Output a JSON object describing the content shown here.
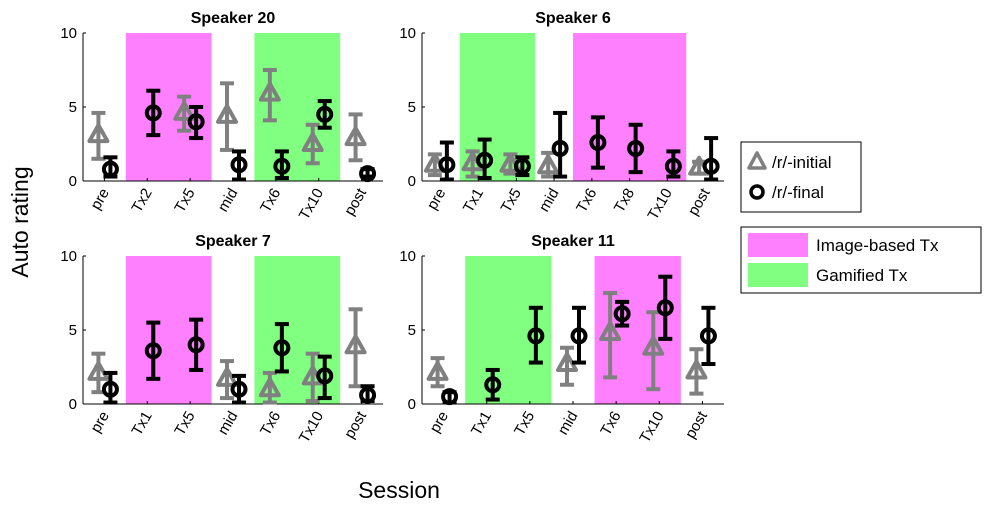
{
  "chart_data": {
    "type": "scatter",
    "xlabel": "Session",
    "ylabel": "Auto rating",
    "ylim": [
      0,
      10
    ],
    "yticks": [
      0,
      5,
      10
    ],
    "grid": false,
    "colors": {
      "initial": "#808080",
      "final": "#000000",
      "image_based": "#ff80ff",
      "gamified": "#80ff80"
    },
    "legend": {
      "placement": "right",
      "markers": [
        {
          "key": "initial",
          "label": "/r/-initial",
          "marker": "triangle"
        },
        {
          "key": "final",
          "label": "/r/-final",
          "marker": "circle"
        }
      ],
      "patches": [
        {
          "key": "image_based",
          "label": "Image-based Tx"
        },
        {
          "key": "gamified",
          "label": "Gamified Tx"
        }
      ]
    },
    "panels": [
      {
        "title": "Speaker 20",
        "categories": [
          "pre",
          "Tx2",
          "Tx5",
          "mid",
          "Tx6",
          "Tx10",
          "post"
        ],
        "shading": [
          {
            "from": "Tx2",
            "to": "Tx5",
            "type": "image_based"
          },
          {
            "from": "Tx6",
            "to": "Tx10",
            "type": "gamified"
          }
        ],
        "series": [
          {
            "name": "/r/-initial",
            "key": "initial",
            "values": [
              3.1,
              null,
              4.6,
              4.4,
              5.9,
              2.5,
              2.9
            ],
            "error": [
              [
                1.5,
                4.6
              ],
              null,
              [
                3.4,
                5.7
              ],
              [
                2.1,
                6.6
              ],
              [
                4.1,
                7.5
              ],
              [
                1.2,
                3.8
              ],
              [
                1.4,
                4.5
              ]
            ]
          },
          {
            "name": "/r/-final",
            "key": "final",
            "values": [
              0.8,
              4.6,
              4.0,
              1.1,
              1.0,
              4.5,
              0.5
            ],
            "error": [
              [
                0.3,
                1.6
              ],
              [
                3.1,
                6.1
              ],
              [
                2.9,
                5.0
              ],
              [
                0.1,
                2.0
              ],
              [
                0.2,
                2.0
              ],
              [
                3.6,
                5.4
              ],
              [
                0.3,
                0.8
              ]
            ]
          }
        ]
      },
      {
        "title": "Speaker 6",
        "categories": [
          "pre",
          "Tx1",
          "Tx5",
          "mid",
          "Tx6",
          "Tx8",
          "Tx10",
          "post"
        ],
        "shading": [
          {
            "from": "Tx1",
            "to": "Tx5",
            "type": "gamified"
          },
          {
            "from": "Tx6",
            "to": "Tx10",
            "type": "image_based"
          }
        ],
        "series": [
          {
            "name": "/r/-initial",
            "key": "initial",
            "values": [
              1.1,
              1.2,
              1.1,
              1.0,
              null,
              null,
              null,
              0.9
            ],
            "error": [
              [
                0.4,
                1.8
              ],
              [
                0.3,
                2.0
              ],
              [
                0.5,
                1.8
              ],
              [
                0.3,
                1.9
              ],
              null,
              null,
              null,
              [
                0.5,
                1.3
              ]
            ]
          },
          {
            "name": "/r/-final",
            "key": "final",
            "values": [
              1.1,
              1.4,
              1.0,
              2.2,
              2.6,
              2.2,
              1.0,
              1.0
            ],
            "error": [
              [
                0.1,
                2.6
              ],
              [
                0.2,
                2.8
              ],
              [
                0.4,
                1.6
              ],
              [
                0.3,
                4.6
              ],
              [
                0.9,
                4.3
              ],
              [
                0.6,
                3.8
              ],
              [
                0.3,
                2.0
              ],
              [
                0.1,
                2.9
              ]
            ]
          }
        ]
      },
      {
        "title": "Speaker 7",
        "categories": [
          "pre",
          "Tx1",
          "Tx5",
          "mid",
          "Tx6",
          "Tx10",
          "post"
        ],
        "shading": [
          {
            "from": "Tx1",
            "to": "Tx5",
            "type": "image_based"
          },
          {
            "from": "Tx6",
            "to": "Tx10",
            "type": "gamified"
          }
        ],
        "series": [
          {
            "name": "/r/-initial",
            "key": "initial",
            "values": [
              2.1,
              null,
              null,
              1.7,
              1.0,
              1.8,
              3.9
            ],
            "error": [
              [
                0.8,
                3.4
              ],
              null,
              null,
              [
                0.4,
                2.9
              ],
              [
                0.1,
                2.1
              ],
              [
                0.2,
                3.4
              ],
              [
                1.2,
                6.4
              ]
            ]
          },
          {
            "name": "/r/-final",
            "key": "final",
            "values": [
              1.0,
              3.6,
              4.0,
              1.0,
              3.8,
              1.9,
              0.6
            ],
            "error": [
              [
                0.1,
                2.1
              ],
              [
                1.7,
                5.5
              ],
              [
                2.3,
                5.7
              ],
              [
                0.1,
                1.9
              ],
              [
                2.2,
                5.4
              ],
              [
                0.4,
                3.2
              ],
              [
                0.2,
                1.2
              ]
            ]
          }
        ]
      },
      {
        "title": "Speaker 11",
        "categories": [
          "pre",
          "Tx1",
          "Tx5",
          "mid",
          "Tx6",
          "Tx10",
          "post"
        ],
        "shading": [
          {
            "from": "Tx1",
            "to": "Tx5",
            "type": "gamified"
          },
          {
            "from": "Tx6",
            "to": "Tx10",
            "type": "image_based"
          }
        ],
        "series": [
          {
            "name": "/r/-initial",
            "key": "initial",
            "values": [
              2.1,
              null,
              null,
              2.7,
              4.8,
              3.8,
              2.2
            ],
            "error": [
              [
                1.2,
                3.1
              ],
              null,
              null,
              [
                1.3,
                3.8
              ],
              [
                1.8,
                7.5
              ],
              [
                1.0,
                6.2
              ],
              [
                0.7,
                3.7
              ]
            ]
          },
          {
            "name": "/r/-final",
            "key": "final",
            "values": [
              0.5,
              1.3,
              4.6,
              4.6,
              6.1,
              6.5,
              4.6
            ],
            "error": [
              [
                0.1,
                0.8
              ],
              [
                0.3,
                2.3
              ],
              [
                2.8,
                6.5
              ],
              [
                2.8,
                6.5
              ],
              [
                5.3,
                6.9
              ],
              [
                4.4,
                8.6
              ],
              [
                2.7,
                6.5
              ]
            ]
          }
        ]
      }
    ]
  }
}
